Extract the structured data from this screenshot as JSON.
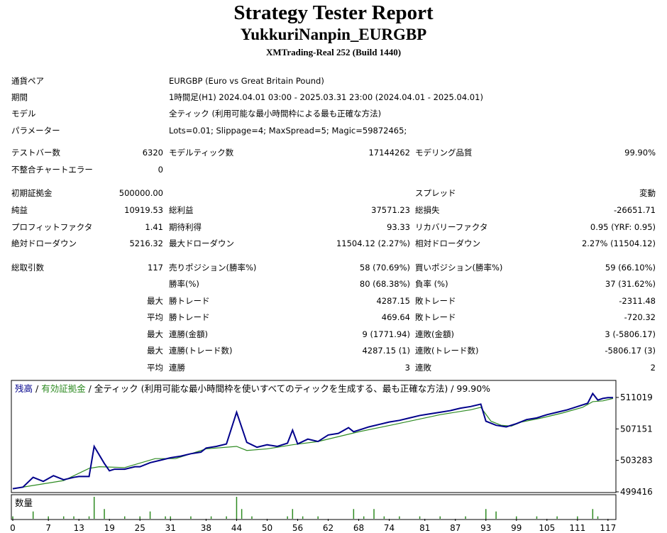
{
  "report": {
    "title": "Strategy Tester Report",
    "ea_name": "YukkuriNanpin_EURGBP",
    "server": "XMTrading-Real 252 (Build 1440)"
  },
  "info": {
    "symbol_label": "通貨ペア",
    "symbol_value": "EURGBP (Euro vs Great Britain Pound)",
    "period_label": "期間",
    "period_value": "1時間足(H1) 2024.04.01 03:00 - 2025.03.31 23:00 (2024.04.01 - 2025.04.01)",
    "model_label": "モデル",
    "model_value": "全ティック (利用可能な最小時間枠による最も正確な方法)",
    "params_label": "パラメーター",
    "params_value": "Lots=0.01; Slippage=4; MaxSpread=5; Magic=59872465;"
  },
  "stats": {
    "bars_label": "テストバー数",
    "bars": "6320",
    "ticks_label": "モデルティック数",
    "ticks": "17144262",
    "quality_label": "モデリング品質",
    "quality": "99.90%",
    "mismatch_label": "不整合チャートエラー",
    "mismatch": "0",
    "deposit_label": "初期証拠金",
    "deposit": "500000.00",
    "spread_label": "スプレッド",
    "spread": "変動",
    "net_label": "純益",
    "net": "10919.53",
    "gross_profit_label": "総利益",
    "gross_profit": "37571.23",
    "gross_loss_label": "総損失",
    "gross_loss": "-26651.71",
    "pf_label": "プロフィットファクタ",
    "pf": "1.41",
    "expected_label": "期待利得",
    "expected": "93.33",
    "recovery_label": "リカバリーファクタ",
    "recovery": "0.95 (YRF: 0.95)",
    "abs_dd_label": "絶対ドローダウン",
    "abs_dd": "5216.32",
    "max_dd_label": "最大ドローダウン",
    "max_dd": "11504.12 (2.27%)",
    "rel_dd_label": "相対ドローダウン",
    "rel_dd": "2.27% (11504.12)",
    "trades_label": "総取引数",
    "trades": "117",
    "short_label": "売りポジション(勝率%)",
    "short": "58 (70.69%)",
    "long_label": "買いポジション(勝率%)",
    "long": "59 (66.10%)",
    "win_label": "勝率(%)",
    "win": "80 (68.38%)",
    "loss_label": "負率 (%)",
    "loss": "37 (31.62%)",
    "max_word": "最大",
    "avg_word": "平均",
    "largest_win_label": "勝トレード",
    "largest_win": "4287.15",
    "largest_loss_label": "敗トレード",
    "largest_loss": "-2311.48",
    "avg_win_label": "勝トレード",
    "avg_win": "469.64",
    "avg_loss_label": "敗トレード",
    "avg_loss": "-720.32",
    "consec_wins_amt_label": "連勝(金額)",
    "consec_wins_amt": "9 (1771.94)",
    "consec_losses_amt_label": "連敗(金額)",
    "consec_losses_amt": "3 (-5806.17)",
    "consec_wins_cnt_label": "連勝(トレード数)",
    "consec_wins_cnt": "4287.15 (1)",
    "consec_losses_cnt_label": "連敗(トレード数)",
    "consec_losses_cnt": "-5806.17 (3)",
    "avg_consec_wins_label": "連勝",
    "avg_consec_wins": "3",
    "avg_consec_losses_label": "連敗",
    "avg_consec_losses": "2"
  },
  "chart_legend": {
    "balance": "残高",
    "sep1": " / ",
    "equity": "有効証拠金",
    "rest": " / 全ティック (利用可能な最小時間枠を使いすべてのティックを生成する、最も正確な方法) / 99.90%",
    "volume_label": "数量"
  },
  "chart_data": {
    "type": "line",
    "colors": {
      "balance": "#00008b",
      "equity": "#2e8b22",
      "volume": "#2e8b22"
    },
    "ylim": [
      499416,
      511019
    ],
    "y_ticks": [
      "511019",
      "507151",
      "503283",
      "499416"
    ],
    "x_ticks": [
      0,
      7,
      13,
      19,
      25,
      31,
      38,
      44,
      50,
      56,
      62,
      68,
      74,
      81,
      87,
      93,
      99,
      105,
      111,
      117
    ],
    "x_range": [
      0,
      118
    ],
    "series": [
      {
        "name": "残高",
        "x": [
          0,
          2,
          4,
          6,
          8,
          10,
          12,
          13,
          15,
          16,
          18,
          19,
          20,
          22,
          24,
          25,
          27,
          29,
          31,
          33,
          35,
          37,
          38,
          40,
          42,
          44,
          46,
          48,
          50,
          52,
          54,
          55,
          56,
          58,
          60,
          62,
          64,
          66,
          67,
          68,
          70,
          72,
          74,
          76,
          78,
          80,
          82,
          84,
          86,
          88,
          90,
          92,
          93,
          95,
          97,
          99,
          101,
          103,
          105,
          107,
          109,
          111,
          113,
          114,
          115,
          116,
          117,
          118
        ],
        "y": [
          499800,
          500000,
          501200,
          500700,
          501400,
          500900,
          501200,
          501300,
          501300,
          505000,
          502900,
          502000,
          502200,
          502200,
          502500,
          502500,
          503000,
          503300,
          503600,
          503800,
          504100,
          504300,
          504800,
          505000,
          505300,
          509200,
          505500,
          504900,
          505200,
          505000,
          505400,
          507000,
          505300,
          505900,
          505600,
          506400,
          506600,
          507300,
          506800,
          507000,
          507400,
          507700,
          508000,
          508200,
          508500,
          508800,
          509000,
          509200,
          509400,
          509700,
          509900,
          510200,
          508100,
          507600,
          507400,
          507800,
          508300,
          508500,
          508900,
          509200,
          509500,
          509900,
          510300,
          511500,
          510700,
          510900,
          511000,
          511000
        ]
      },
      {
        "name": "有効証拠金",
        "x": [
          0,
          10,
          15,
          17,
          22,
          28,
          32,
          38,
          44,
          46,
          50,
          55,
          60,
          68,
          75,
          84,
          88,
          90,
          92,
          94,
          96,
          98,
          100,
          104,
          108,
          112,
          114,
          116,
          118
        ],
        "y": [
          499800,
          500800,
          502300,
          502500,
          502400,
          503500,
          503500,
          504700,
          505000,
          504500,
          504700,
          505200,
          505600,
          506800,
          507700,
          508900,
          509300,
          509500,
          509800,
          508100,
          507600,
          507500,
          508000,
          508500,
          509100,
          509800,
          510500,
          510600,
          510900
        ]
      },
      {
        "name": "数量",
        "x": [
          0,
          4,
          7,
          10,
          12,
          15,
          16,
          18,
          22,
          25,
          27,
          30,
          31,
          35,
          39,
          42,
          44,
          45,
          47,
          54,
          55,
          57,
          60,
          67,
          69,
          71,
          73,
          76,
          80,
          84,
          89,
          93,
          95,
          99,
          103,
          107,
          111,
          114,
          115
        ],
        "y": [
          1,
          3,
          1,
          1,
          1,
          1,
          9,
          4,
          1,
          1,
          3,
          1,
          1,
          1,
          1,
          1,
          9,
          4,
          1,
          1,
          4,
          1,
          1,
          4,
          1,
          4,
          1,
          1,
          1,
          1,
          1,
          4,
          3,
          1,
          1,
          1,
          1,
          4,
          1
        ]
      }
    ]
  }
}
